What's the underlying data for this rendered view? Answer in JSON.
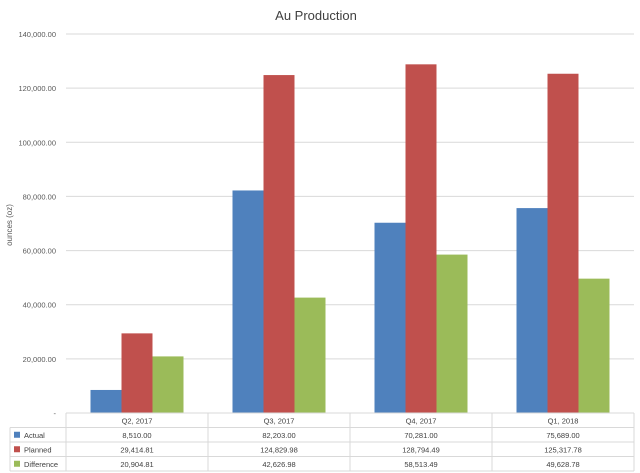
{
  "chart_data": {
    "type": "bar",
    "title": "Au Production",
    "ylabel": "ounces (oz)",
    "xlabel": "",
    "ylim": [
      0,
      140000
    ],
    "y_ticks": [
      0,
      20000,
      40000,
      60000,
      80000,
      100000,
      120000,
      140000
    ],
    "y_tick_labels": [
      "-",
      "20,000.00",
      "40,000.00",
      "60,000.00",
      "80,000.00",
      "100,000.00",
      "120,000.00",
      "140,000.00"
    ],
    "grid": true,
    "legend": "data-table",
    "categories": [
      "Q2, 2017",
      "Q3, 2017",
      "Q4, 2017",
      "Q1, 2018"
    ],
    "series": [
      {
        "name": "Actual",
        "color": "#4f81bd",
        "values": [
          8510.0,
          82203.0,
          70281.0,
          75689.0
        ],
        "labels": [
          "8,510.00",
          "82,203.00",
          "70,281.00",
          "75,689.00"
        ]
      },
      {
        "name": "Planned",
        "color": "#c0504d",
        "values": [
          29414.81,
          124829.98,
          128794.49,
          125317.78
        ],
        "labels": [
          "29,414.81",
          "124,829.98",
          "128,794.49",
          "125,317.78"
        ]
      },
      {
        "name": "Difference",
        "color": "#9bbb59",
        "values": [
          20904.81,
          42626.98,
          58513.49,
          49628.78
        ],
        "labels": [
          "20,904.81",
          "42,626.98",
          "58,513.49",
          "49,628.78"
        ]
      }
    ]
  }
}
